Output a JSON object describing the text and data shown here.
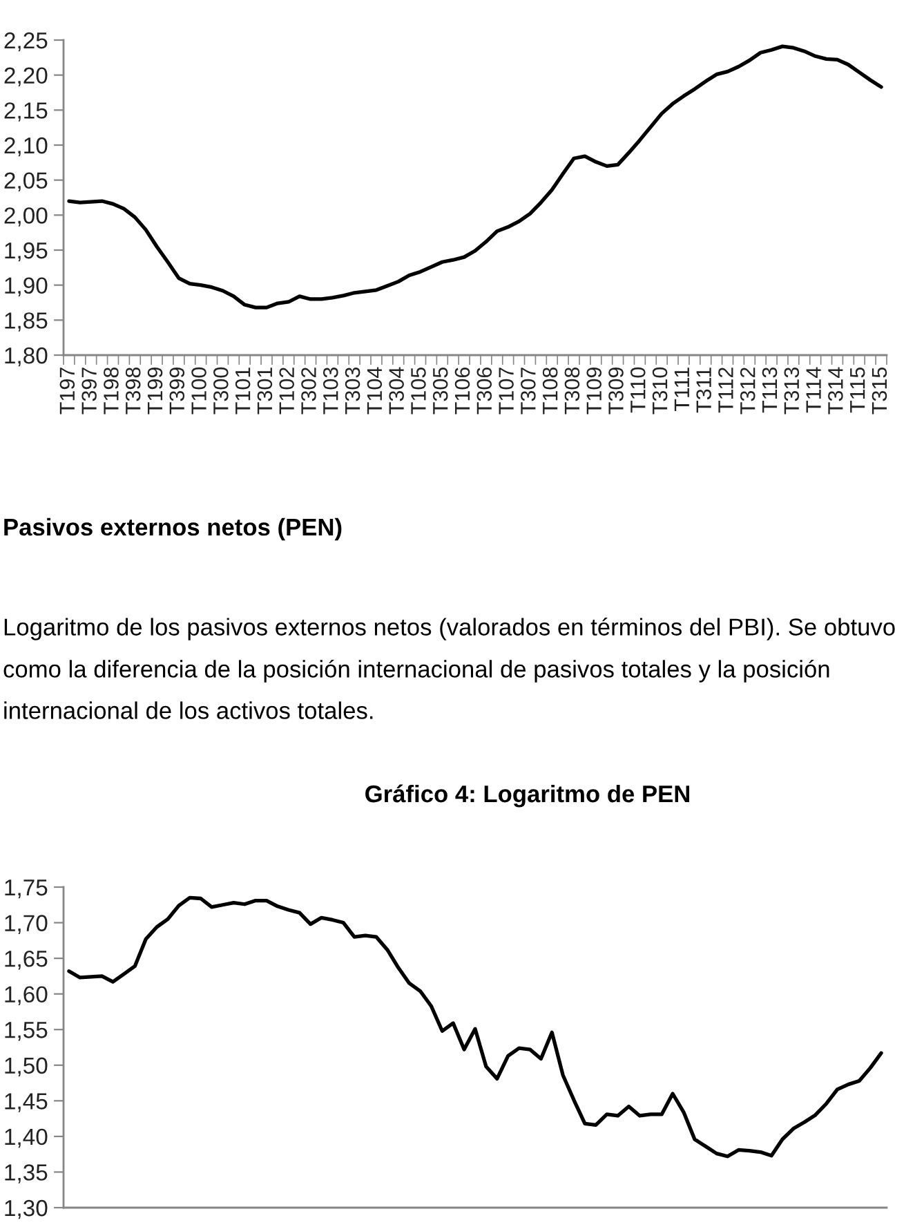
{
  "chart_data": [
    {
      "type": "line",
      "categories": [
        "T197",
        null,
        "T397",
        null,
        "T198",
        null,
        "T398",
        null,
        "T199",
        null,
        "T399",
        null,
        "T100",
        null,
        "T300",
        null,
        "T101",
        null,
        "T301",
        null,
        "T102",
        null,
        "T302",
        null,
        "T103",
        null,
        "T303",
        null,
        "T104",
        null,
        "T304",
        null,
        "T105",
        null,
        "T305",
        null,
        "T106",
        null,
        "T306",
        null,
        "T107",
        null,
        "T307",
        null,
        "T108",
        null,
        "T308",
        null,
        "T109",
        null,
        "T309",
        null,
        "T110",
        null,
        "T310",
        null,
        "T111",
        null,
        "T311",
        null,
        "T112",
        null,
        "T312",
        null,
        "T113",
        null,
        "T313",
        null,
        "T114",
        null,
        "T314",
        null,
        "T115",
        null,
        "T315"
      ],
      "values": [
        2.02,
        2.018,
        2.019,
        2.02,
        2.016,
        2.009,
        1.997,
        1.979,
        1.955,
        1.933,
        1.91,
        1.902,
        1.9,
        1.897,
        1.892,
        1.884,
        1.872,
        1.868,
        1.868,
        1.874,
        1.876,
        1.884,
        1.88,
        1.88,
        1.882,
        1.885,
        1.889,
        1.891,
        1.893,
        1.899,
        1.905,
        1.914,
        1.919,
        1.926,
        1.933,
        1.936,
        1.94,
        1.949,
        1.962,
        1.977,
        1.983,
        1.991,
        2.002,
        2.018,
        2.036,
        2.059,
        2.081,
        2.084,
        2.076,
        2.07,
        2.072,
        2.089,
        2.107,
        2.126,
        2.145,
        2.159,
        2.17,
        2.18,
        2.191,
        2.201,
        2.205,
        2.212,
        2.221,
        2.232,
        2.236,
        2.241,
        2.239,
        2.234,
        2.227,
        2.223,
        2.222,
        2.215,
        2.204,
        2.193,
        2.183
      ],
      "color": "#000000",
      "ylim": [
        1.8,
        2.25
      ],
      "yticks": [
        {
          "value": 1.8,
          "label": "1,80"
        },
        {
          "value": 1.85,
          "label": "1,85"
        },
        {
          "value": 1.9,
          "label": "1,90"
        },
        {
          "value": 1.95,
          "label": "1,95"
        },
        {
          "value": 2.0,
          "label": "2,00"
        },
        {
          "value": 2.05,
          "label": "2,05"
        },
        {
          "value": 2.1,
          "label": "2,10"
        },
        {
          "value": 2.15,
          "label": "2,15"
        },
        {
          "value": 2.2,
          "label": "2,20"
        },
        {
          "value": 2.25,
          "label": "2,25"
        }
      ]
    },
    {
      "type": "line",
      "title": "Gráfico 4: Logaritmo de PEN",
      "annotations": [
        "Pasivos externos netos (PEN)",
        "Logaritmo de los pasivos externos netos (valorados en términos del PBI). Se obtuvo como la diferencia de la posición internacional de pasivos totales y la posición internacional de los activos totales."
      ],
      "categories": [
        null,
        null,
        null,
        null,
        null,
        null,
        null,
        null,
        null,
        null,
        null,
        null,
        null,
        null,
        null,
        null,
        null,
        null,
        null,
        null,
        null,
        null,
        null,
        null,
        null,
        null,
        null,
        null,
        null,
        null,
        null,
        null,
        null,
        null,
        null,
        null,
        null,
        null,
        null,
        null,
        null,
        null,
        null,
        null,
        null,
        null,
        null,
        null,
        null,
        null,
        null,
        null,
        null,
        null,
        null,
        null,
        null,
        null,
        null,
        null,
        null,
        null,
        null,
        null,
        null,
        null,
        null,
        null,
        null,
        null,
        null,
        null,
        null,
        null,
        null
      ],
      "values": [
        1.632,
        1.623,
        1.624,
        1.625,
        1.617,
        1.628,
        1.639,
        1.677,
        1.694,
        1.705,
        1.724,
        1.735,
        1.734,
        1.722,
        1.725,
        1.728,
        1.726,
        1.731,
        1.731,
        1.723,
        1.718,
        1.714,
        1.698,
        1.707,
        1.704,
        1.7,
        1.68,
        1.682,
        1.68,
        1.662,
        1.637,
        1.615,
        1.604,
        1.583,
        1.548,
        1.559,
        1.522,
        1.551,
        1.498,
        1.481,
        1.513,
        1.524,
        1.522,
        1.509,
        1.546,
        1.486,
        1.451,
        1.418,
        1.416,
        1.431,
        1.429,
        1.442,
        1.429,
        1.431,
        1.431,
        1.46,
        1.434,
        1.396,
        1.386,
        1.376,
        1.372,
        1.381,
        1.38,
        1.378,
        1.373,
        1.396,
        1.411,
        1.42,
        1.43,
        1.446,
        1.466,
        1.473,
        1.478,
        1.496,
        1.517
      ],
      "color": "#000000",
      "ylim": [
        1.3,
        1.75
      ],
      "yticks": [
        {
          "value": 1.3,
          "label": "1,30"
        },
        {
          "value": 1.35,
          "label": "1,35"
        },
        {
          "value": 1.4,
          "label": "1,40"
        },
        {
          "value": 1.45,
          "label": "1,45"
        },
        {
          "value": 1.5,
          "label": "1,50"
        },
        {
          "value": 1.55,
          "label": "1,55"
        },
        {
          "value": 1.6,
          "label": "1,60"
        },
        {
          "value": 1.65,
          "label": "1,65"
        },
        {
          "value": 1.7,
          "label": "1,70"
        },
        {
          "value": 1.75,
          "label": "1,75"
        }
      ],
      "tick_labels": "y"
    }
  ]
}
